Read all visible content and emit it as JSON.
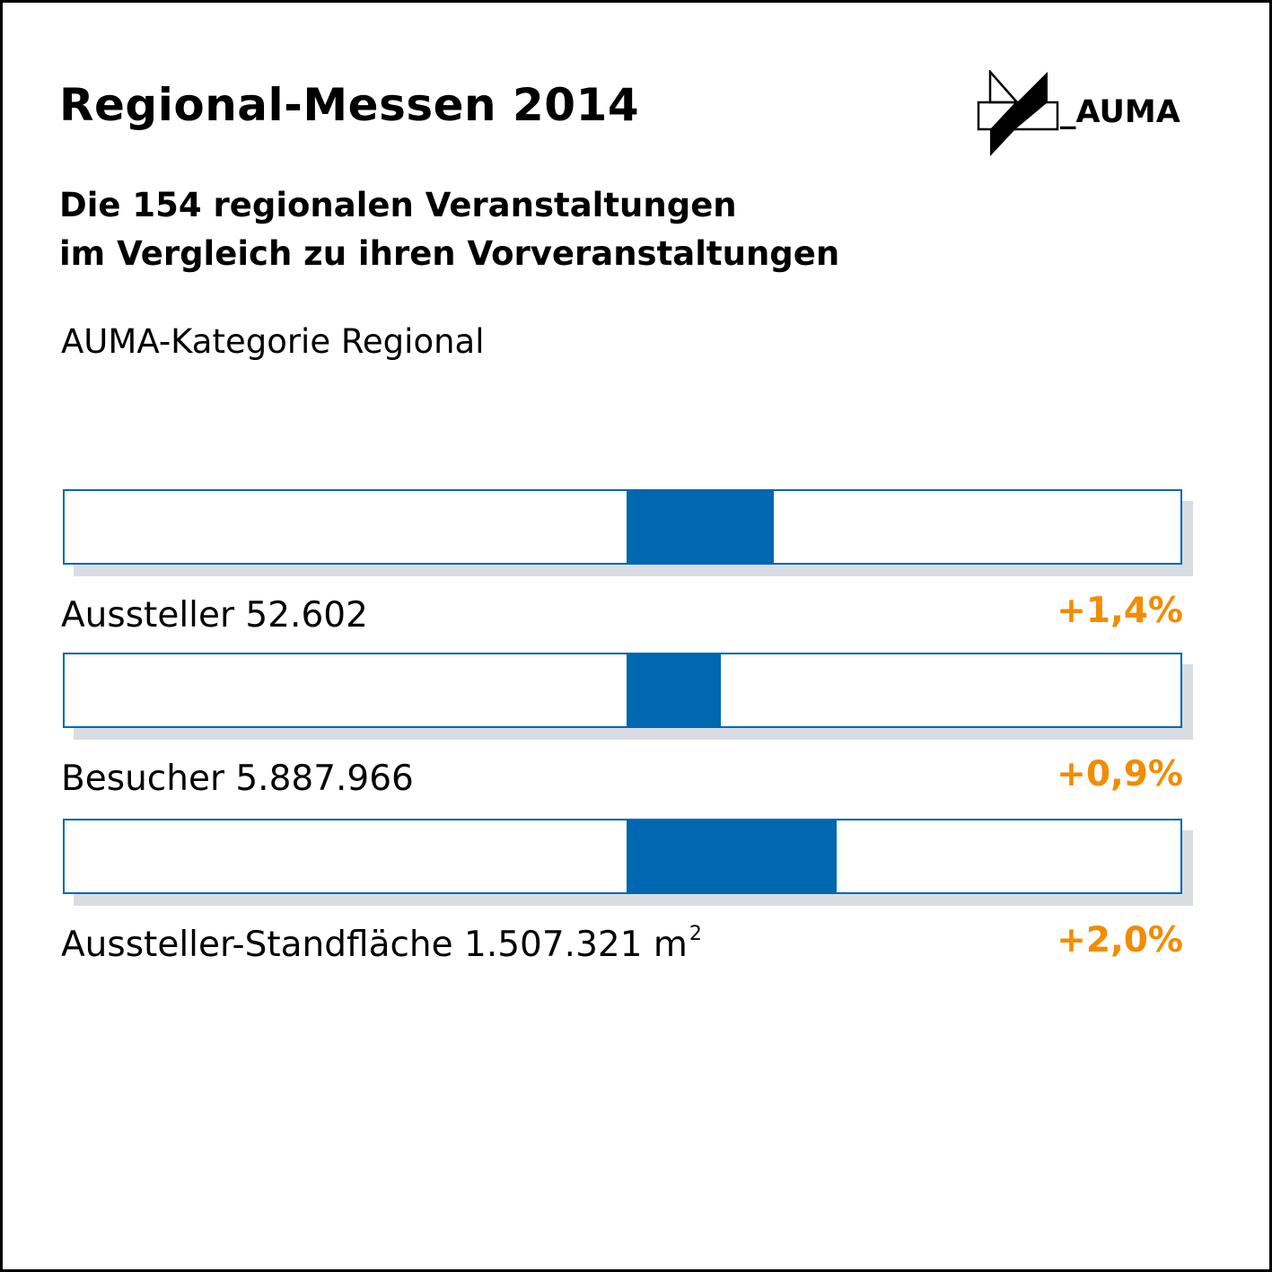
{
  "title": "Regional-Messen 2014",
  "subtitle": {
    "line1": "Die 154 regionalen Veranstaltungen",
    "line2": "im Vergleich zu ihren Vorveranstaltungen"
  },
  "category": "AUMA-Kategorie Regional",
  "logo": {
    "text": "_AUMA",
    "icon": "auma-logo-icon"
  },
  "colors": {
    "bar": "#0067b0",
    "bar_shadow": "#d9dde2",
    "percent": "#f28c00",
    "text": "#000000"
  },
  "rows": [
    {
      "label": "Aussteller 52.602",
      "unit": "",
      "change": "+1,4%"
    },
    {
      "label": "Besucher 5.887.966",
      "unit": "",
      "change": "+0,9%"
    },
    {
      "label": "Aussteller-Standfläche 1.507.321 m",
      "unit": "2",
      "change": "+2,0%"
    }
  ],
  "chart_data": {
    "type": "bar",
    "categories": [
      "Aussteller 52.602",
      "Besucher 5.887.966",
      "Aussteller-Standfläche 1.507.321 m²"
    ],
    "values": [
      1.4,
      0.9,
      2.0
    ],
    "value_labels": [
      "+1,4%",
      "+0,9%",
      "+2,0%"
    ],
    "title": "Regional-Messen 2014",
    "subtitle": "Die 154 regionalen Veranstaltungen im Vergleich zu ihren Vorveranstaltungen",
    "xlabel": "",
    "ylabel": "",
    "orientation": "horizontal",
    "baseline": 0,
    "grid": false
  }
}
